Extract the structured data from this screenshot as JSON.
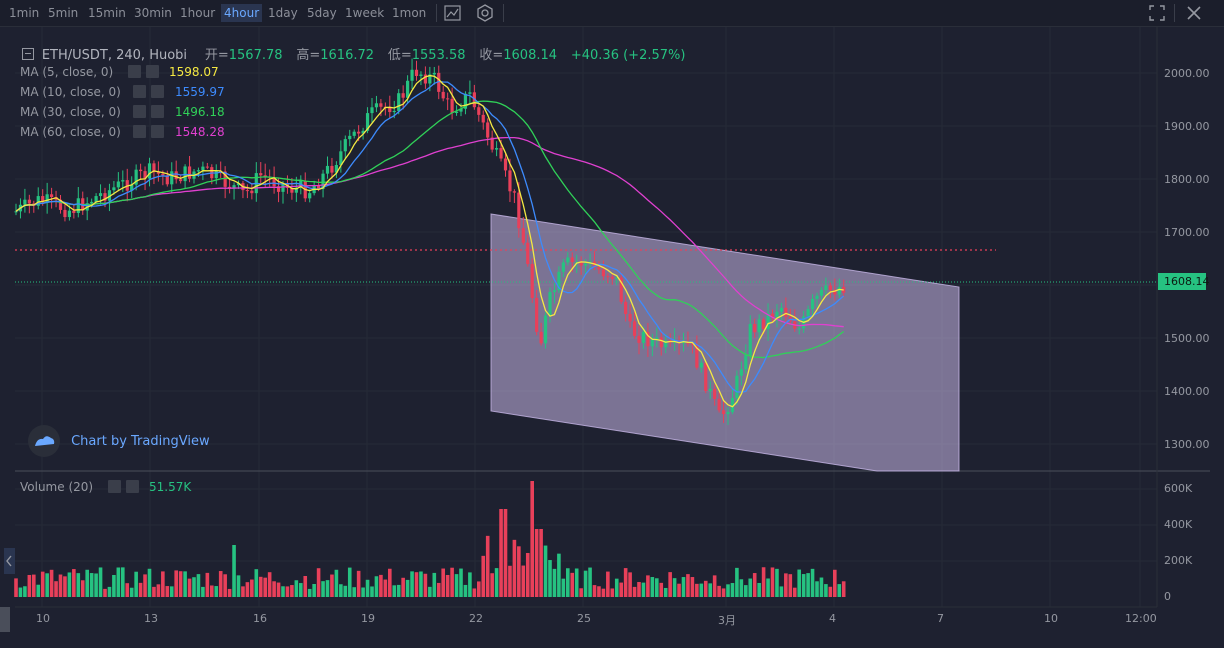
{
  "toolbar": {
    "timeframes": [
      "1min",
      "5min",
      "15min",
      "30min",
      "1hour",
      "4hour",
      "1day",
      "5day",
      "1week",
      "1mon"
    ],
    "active": "4hour"
  },
  "header": {
    "symbol": "ETH/USDT, 240, Huobi",
    "open_label": "开=",
    "open": "1567.78",
    "high_label": "高=",
    "high": "1616.72",
    "low_label": "低=",
    "low": "1553.58",
    "close_label": "收=",
    "close": "1608.14",
    "change": "+40.36 (+2.57%)"
  },
  "indicators": [
    {
      "label": "MA (5, close, 0)",
      "value": "1598.07",
      "color": "#f5e942"
    },
    {
      "label": "MA (10, close, 0)",
      "value": "1559.97",
      "color": "#3d8bfd"
    },
    {
      "label": "MA (30, close, 0)",
      "value": "1496.18",
      "color": "#30d158"
    },
    {
      "label": "MA (60, close, 0)",
      "value": "1548.28",
      "color": "#e040d0"
    }
  ],
  "volume": {
    "label": "Volume (20)",
    "value": "51.57K"
  },
  "watermark": "Chart by TradingView",
  "price_axis": [
    "2000.00",
    "1900.00",
    "1800.00",
    "1700.00",
    "1600.00",
    "1500.00",
    "1400.00",
    "1300.00"
  ],
  "current_price_tag": "1608.14",
  "volume_axis": [
    "600K",
    "400K",
    "200K",
    "0"
  ],
  "date_axis": [
    "10",
    "13",
    "16",
    "19",
    "22",
    "25",
    "3月",
    "4",
    "7",
    "10",
    "12:00"
  ],
  "colors": {
    "up": "#26c281",
    "down": "#e8405a",
    "background": "#1e2130",
    "channel": "#c8b8e8"
  }
}
